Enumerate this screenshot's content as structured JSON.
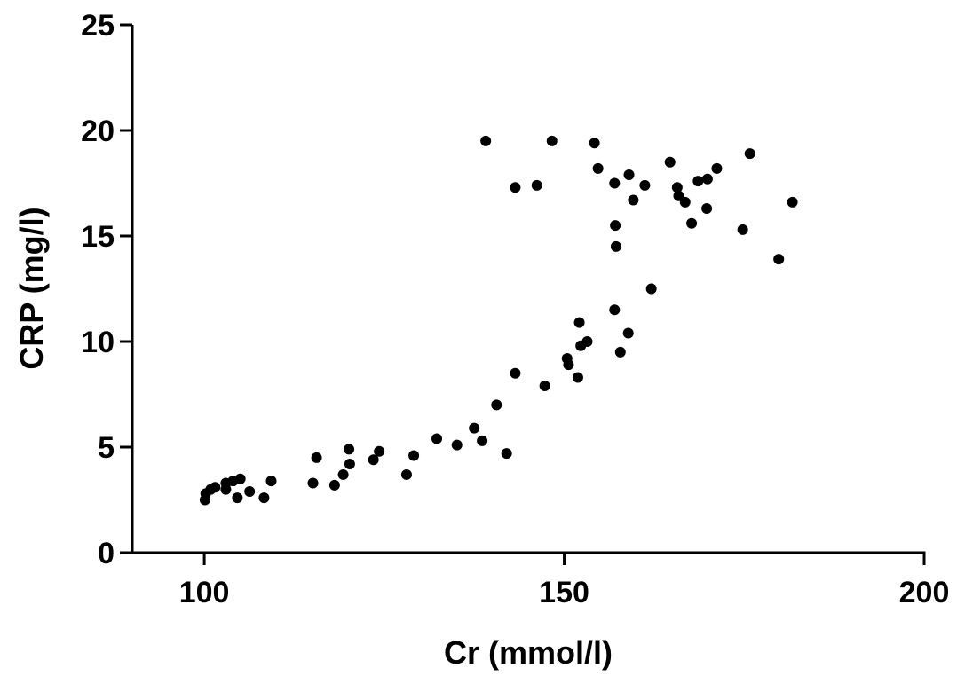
{
  "chart_data": {
    "type": "scatter",
    "xlabel": "Cr (mmol/l)",
    "ylabel": "CRP (mg/l)",
    "xlim": [
      90,
      200
    ],
    "ylim": [
      0,
      25
    ],
    "xticks": [
      100,
      150,
      200
    ],
    "yticks": [
      0,
      5,
      10,
      15,
      20,
      25
    ],
    "color": "#000000",
    "x": [
      100.2,
      100.1,
      100.9,
      101.5,
      103.0,
      103.0,
      104.0,
      105.0,
      104.6,
      106.3,
      108.3,
      109.3,
      115.1,
      115.6,
      118.1,
      119.3,
      120.1,
      120.2,
      123.5,
      124.3,
      128.1,
      129.1,
      132.3,
      135.1,
      137.5,
      138.6,
      140.6,
      142.0,
      139.1,
      143.2,
      143.2,
      146.2,
      147.3,
      148.3,
      150.4,
      150.6,
      151.9,
      152.1,
      152.3,
      153.2,
      154.2,
      154.7,
      157.0,
      157.1,
      157.2,
      159.0,
      159.6,
      161.2,
      162.1,
      157.0,
      157.8,
      158.9,
      164.7,
      165.7,
      165.9,
      166.8,
      167.7,
      168.6,
      169.9,
      169.8,
      171.2,
      175.8,
      174.8,
      179.8,
      181.7
    ],
    "values": [
      2.8,
      2.5,
      3.0,
      3.1,
      3.0,
      3.3,
      3.4,
      3.5,
      2.6,
      2.9,
      2.6,
      3.4,
      3.3,
      4.5,
      3.2,
      3.7,
      4.9,
      4.2,
      4.4,
      4.8,
      3.7,
      4.6,
      5.4,
      5.1,
      5.9,
      5.3,
      7.0,
      4.7,
      19.5,
      8.5,
      17.3,
      17.4,
      7.9,
      19.5,
      9.2,
      8.9,
      8.3,
      10.9,
      9.8,
      10.0,
      19.4,
      18.2,
      17.5,
      15.5,
      14.5,
      17.9,
      16.7,
      17.4,
      12.5,
      11.5,
      9.5,
      10.4,
      18.5,
      17.3,
      16.9,
      16.6,
      15.6,
      17.6,
      17.7,
      16.3,
      18.2,
      18.9,
      15.3,
      13.9,
      16.6
    ]
  }
}
